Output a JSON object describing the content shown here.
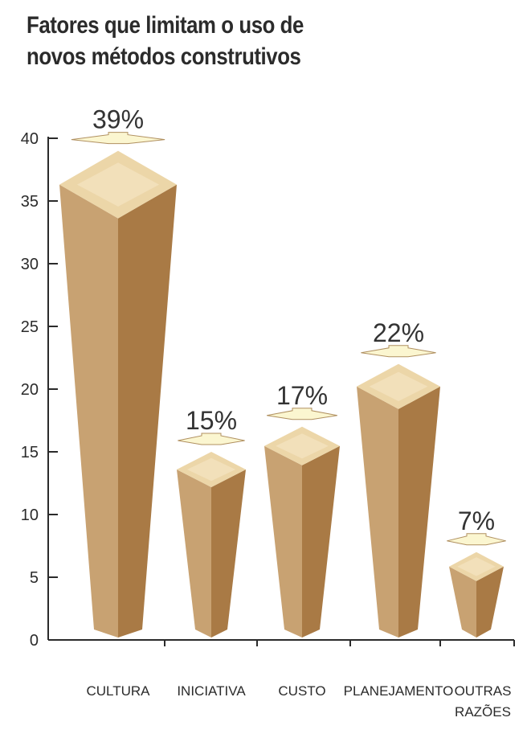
{
  "chart_data": {
    "type": "bar",
    "title_lines": [
      "Fatores que limitam o uso de",
      "novos métodos construtivos"
    ],
    "categories": [
      {
        "lines": [
          "CULTURA"
        ]
      },
      {
        "lines": [
          "INICIATIVA"
        ]
      },
      {
        "lines": [
          "CUSTO"
        ]
      },
      {
        "lines": [
          "PLANEJAMENTO"
        ]
      },
      {
        "lines": [
          "OUTRAS",
          "RAZÕES"
        ]
      }
    ],
    "values": [
      39,
      15,
      17,
      22,
      7
    ],
    "value_labels": [
      "39%",
      "15%",
      "17%",
      "22%",
      "7%"
    ],
    "ylim": [
      0,
      40
    ],
    "yticks": [
      "0",
      "5",
      "10",
      "15",
      "20",
      "25",
      "30",
      "35",
      "40"
    ],
    "colors": {
      "front_face": "#c8a272",
      "side_face": "#a97a45",
      "top_face": "#ecd6a8",
      "top_highlight": "#f6e6c6",
      "arrow_fill": "#fbf6d0",
      "arrow_stroke": "#b09060",
      "axis": "#2b2b2b"
    }
  }
}
